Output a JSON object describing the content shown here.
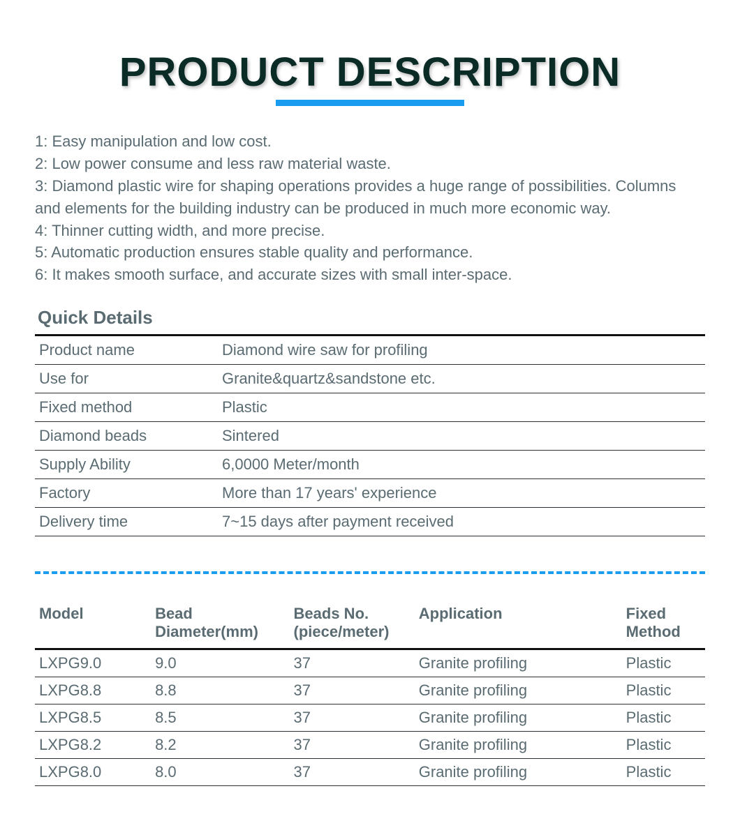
{
  "title": "PRODUCT DESCRIPTION",
  "colors": {
    "title_color": "#0a2b26",
    "accent": "#1a9cf0",
    "text": "#5a6b72",
    "rule": "#2a2f33",
    "rule_heavy": "#111111",
    "background": "#ffffff"
  },
  "typography": {
    "title_fontsize": 58,
    "body_fontsize": 22,
    "section_head_fontsize": 26
  },
  "features": [
    "1: Easy manipulation and low cost.",
    "2: Low power consume and less raw material waste.",
    "3: Diamond plastic wire for shaping operations provides a huge range of possibilities. Columns and elements for the building industry can be produced in  much more economic way.",
    "4: Thinner cutting width, and more precise.",
    "5: Automatic production ensures stable quality and performance.",
    "6: It makes smooth surface, and accurate sizes with small inter-space."
  ],
  "quick_details": {
    "heading": "Quick Details",
    "rows": [
      {
        "label": "Product name",
        "value": "Diamond wire saw for profiling"
      },
      {
        "label": "Use for",
        "value": "Granite&quartz&sandstone etc."
      },
      {
        "label": "Fixed method",
        "value": "Plastic"
      },
      {
        "label": "Diamond beads",
        "value": "Sintered"
      },
      {
        "label": "Supply Ability",
        "value": "6,0000 Meter/month"
      },
      {
        "label": "Factory",
        "value": "More than 17 years' experience"
      },
      {
        "label": "Delivery time",
        "value": "7~15 days after payment received"
      }
    ]
  },
  "models": {
    "columns": [
      "Model",
      "Bead Diameter(mm)",
      "Beads No. (piece/meter)",
      "Application",
      "Fixed Method"
    ],
    "rows": [
      {
        "model": "LXPG9.0",
        "bead": "9.0",
        "beads_no": "37",
        "application": "Granite profiling",
        "fixed": "Plastic"
      },
      {
        "model": "LXPG8.8",
        "bead": "8.8",
        "beads_no": "37",
        "application": "Granite profiling",
        "fixed": "Plastic"
      },
      {
        "model": "LXPG8.5",
        "bead": "8.5",
        "beads_no": "37",
        "application": "Granite profiling",
        "fixed": "Plastic"
      },
      {
        "model": "LXPG8.2",
        "bead": "8.2",
        "beads_no": "37",
        "application": "Granite profiling",
        "fixed": "Plastic"
      },
      {
        "model": "LXPG8.0",
        "bead": "8.0",
        "beads_no": "37",
        "application": "Granite profiling",
        "fixed": "Plastic"
      }
    ]
  }
}
